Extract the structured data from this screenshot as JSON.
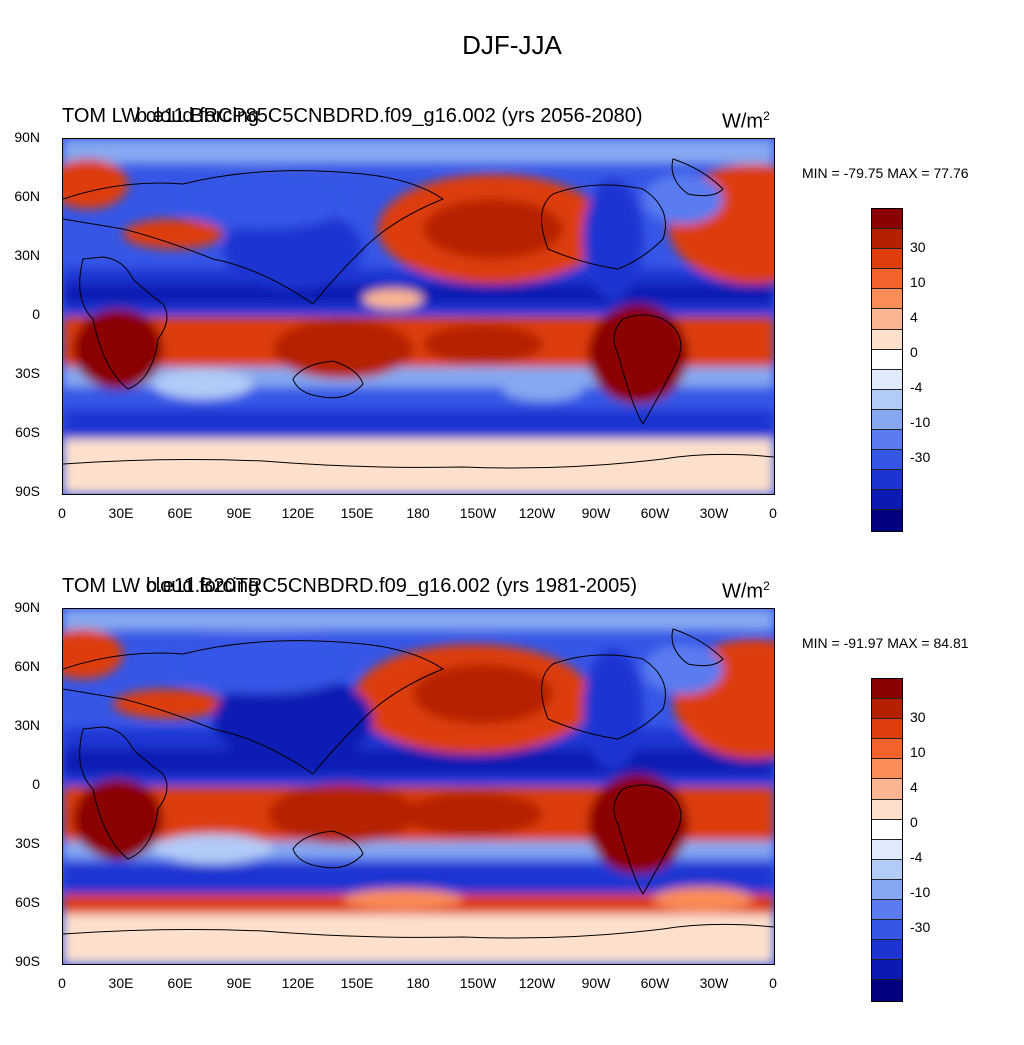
{
  "title": "DJF-JJA",
  "units": "W/m",
  "units_exp": "2",
  "lat_labels": [
    "90N",
    "60N",
    "30N",
    "0",
    "30S",
    "60S",
    "90S"
  ],
  "lon_labels": [
    "0",
    "30E",
    "60E",
    "90E",
    "120E",
    "150E",
    "180",
    "150W",
    "120W",
    "90W",
    "60W",
    "30W",
    "0"
  ],
  "colorbar": {
    "colors": [
      "#8b0000",
      "#b52000",
      "#dd3e0c",
      "#f2622a",
      "#fa8c57",
      "#fcb592",
      "#fde0cc",
      "#ffffff",
      "#dfeafb",
      "#b3cbf7",
      "#85a8f0",
      "#5a7cf0",
      "#3656e6",
      "#1c34d2",
      "#0b1ab2",
      "#02007f"
    ],
    "labels": [
      "30",
      "10",
      "4",
      "0",
      "-4",
      "-10",
      "-30"
    ]
  },
  "panels": [
    {
      "left_title": "TOM LW cloud forcing",
      "run": "b.e11.BRCP85C5CNBDRD.f09_g16.002 (yrs 2056-2080)",
      "min_label": "MIN = -79.75 MAX =  77.76",
      "min": -79.75,
      "max": 77.76
    },
    {
      "left_title": "TOM LW cloud forcing",
      "run": "b.e11.B20TRC5CNBDRD.f09_g16.002 (yrs 1981-2005)",
      "min_label": "MIN = -91.97 MAX =  84.81",
      "min": -91.97,
      "max": 84.81
    }
  ]
}
